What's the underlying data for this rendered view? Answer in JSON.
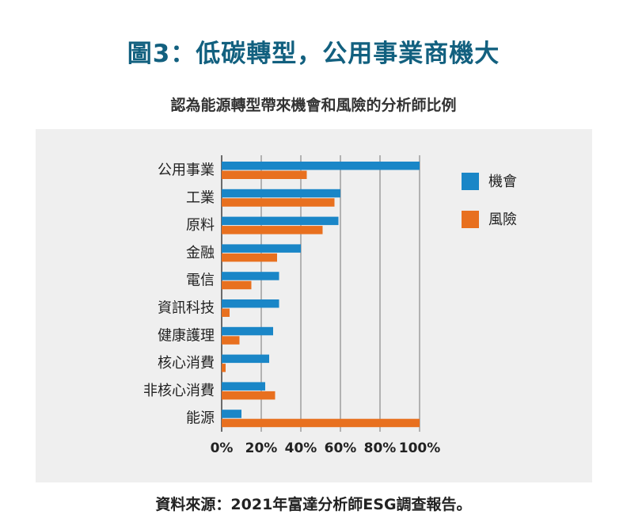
{
  "title": "圖3：低碳轉型，公用事業商機大",
  "subtitle": "認為能源轉型帶來機會和風險的分析師比例",
  "source": "資料來源：2021年富達分析師ESG調查報告。",
  "colors": {
    "title": "#12607f",
    "opportunity": "#1a86c7",
    "risk": "#e8701f",
    "panel_background": "#efefef",
    "grid": "#555555"
  },
  "chart_data": {
    "type": "bar",
    "orientation": "horizontal",
    "categories": [
      "公用事業",
      "工業",
      "原料",
      "金融",
      "電信",
      "資訊科技",
      "健康護理",
      "核心消費",
      "非核心消費",
      "能源"
    ],
    "series": [
      {
        "name": "機會",
        "values": [
          100,
          60,
          59,
          40,
          29,
          29,
          26,
          24,
          22,
          10
        ]
      },
      {
        "name": "風險",
        "values": [
          43,
          57,
          51,
          28,
          15,
          4,
          9,
          2,
          27,
          100
        ]
      }
    ],
    "x_ticks": [
      "0%",
      "20%",
      "40%",
      "60%",
      "80%",
      "100%"
    ],
    "xlim": [
      0,
      100
    ],
    "grid": true,
    "legend_position": "top-right"
  }
}
